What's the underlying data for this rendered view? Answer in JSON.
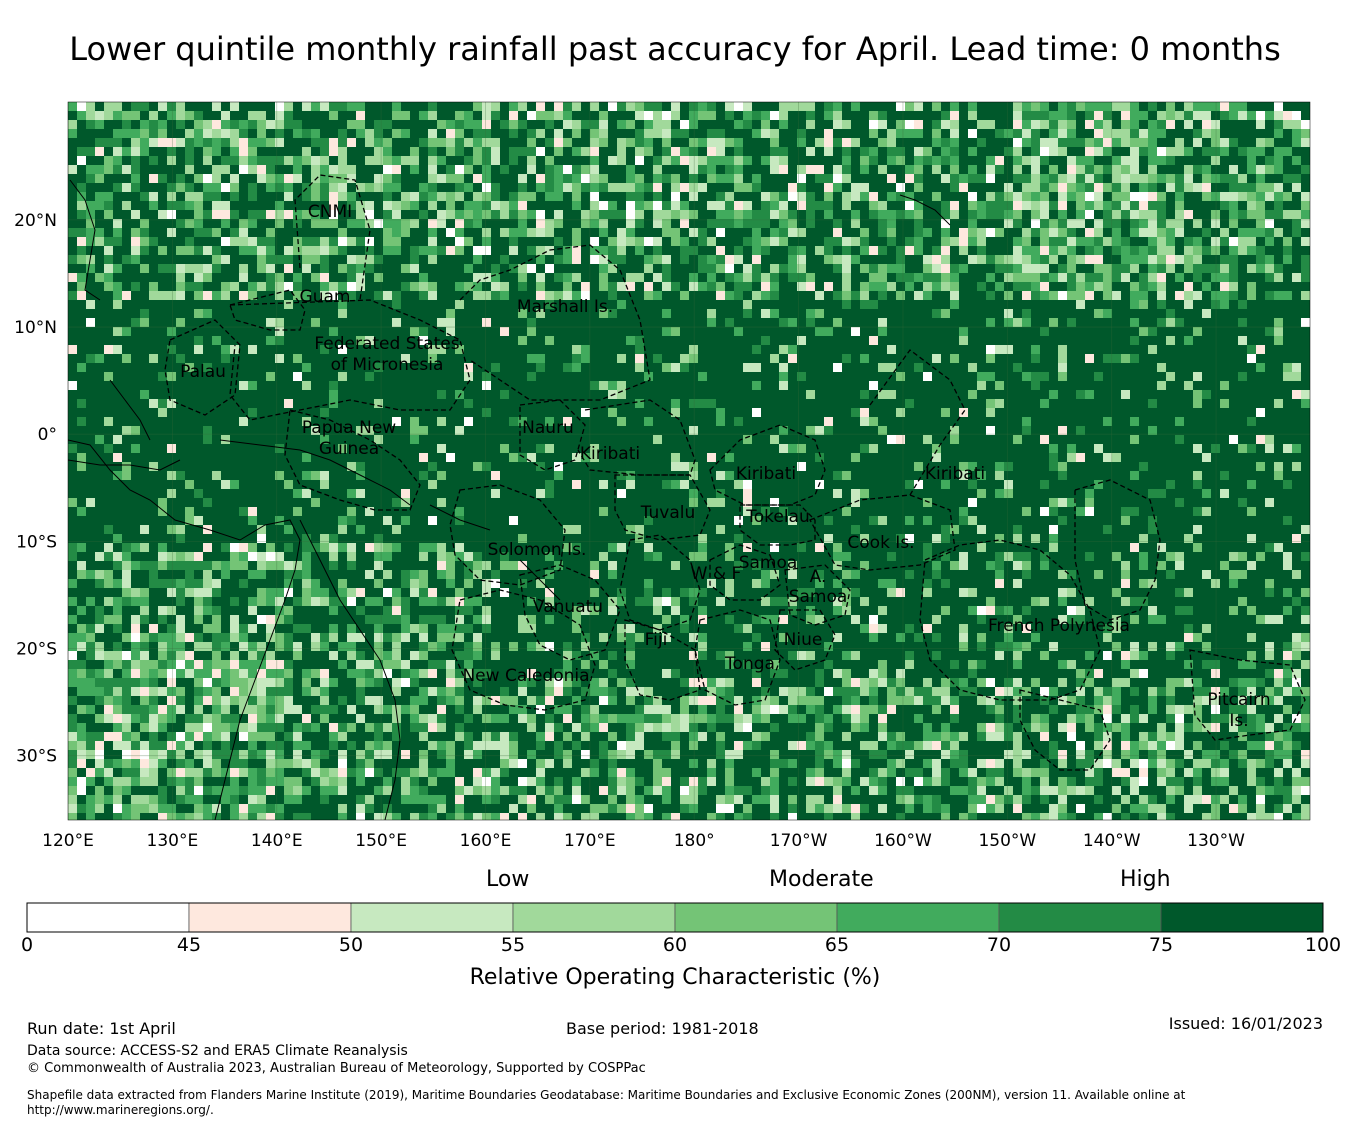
{
  "title": "Lower quintile monthly rainfall past accuracy for April. Lead time: 0 months",
  "map": {
    "lon_ticks": [
      "120°E",
      "130°E",
      "140°E",
      "150°E",
      "160°E",
      "170°E",
      "180°",
      "170°W",
      "160°W",
      "150°W",
      "140°W",
      "130°W"
    ],
    "lat_ticks": [
      "20°N",
      "10°N",
      "0°",
      "10°S",
      "20°S",
      "30°S"
    ],
    "regions": [
      "CNMI",
      "Guam",
      "Marshall Is.",
      "Federated States",
      "of Micronesia",
      "Palau",
      "Papua New",
      "Guinea",
      "Nauru",
      "Kiribati",
      "Kiribati",
      "Kiribati",
      "Tuvalu",
      "Tokelau",
      "Cook Is.",
      "Solomon Is.",
      "Samoa",
      "W & F",
      "A.",
      "Samoa",
      "Vanuatu",
      "Fiji",
      "Niue",
      "Tonga",
      "French Polynesia",
      "New Caledonia",
      "Pitcairn",
      "Is."
    ]
  },
  "legend": {
    "category_low": "Low",
    "category_moderate": "Moderate",
    "category_high": "High",
    "title": "Relative Operating Characteristic (%)",
    "ticks": [
      "0",
      "45",
      "50",
      "55",
      "60",
      "65",
      "70",
      "75",
      "100"
    ],
    "colors": [
      "#ffffff",
      "#fee8de",
      "#c7e9c0",
      "#a1d99b",
      "#74c476",
      "#41ab5d",
      "#238b45",
      "#00582b"
    ]
  },
  "footer": {
    "run_date": "Run date: 1st April",
    "base_period": "Base period: 1981-2018",
    "issued": "Issued: 16/01/2023",
    "data_source": "Data source: ACCESS-S2 and ERA5 Climate Reanalysis",
    "copyright": "© Commonwealth of Australia 2023, Australian Bureau of Meteorology, Supported by COSPPac",
    "shapefile": "Shapefile data extracted from Flanders Marine Institute (2019), Maritime Boundaries Geodatabase: Maritime Boundaries and Exclusive Economic Zones (200NM), version 11. Available online at http://www.marineregions.org/."
  }
}
